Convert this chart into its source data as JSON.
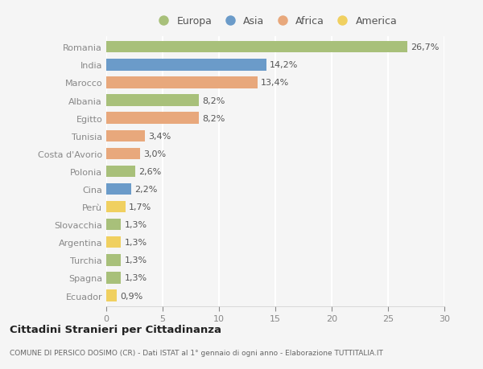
{
  "countries": [
    "Romania",
    "India",
    "Marocco",
    "Albania",
    "Egitto",
    "Tunisia",
    "Costa d'Avorio",
    "Polonia",
    "Cina",
    "Perù",
    "Slovacchia",
    "Argentina",
    "Turchia",
    "Spagna",
    "Ecuador"
  ],
  "values": [
    26.7,
    14.2,
    13.4,
    8.2,
    8.2,
    3.4,
    3.0,
    2.6,
    2.2,
    1.7,
    1.3,
    1.3,
    1.3,
    1.3,
    0.9
  ],
  "labels": [
    "26,7%",
    "14,2%",
    "13,4%",
    "8,2%",
    "8,2%",
    "3,4%",
    "3,0%",
    "2,6%",
    "2,2%",
    "1,7%",
    "1,3%",
    "1,3%",
    "1,3%",
    "1,3%",
    "0,9%"
  ],
  "colors": [
    "#a8c07a",
    "#6b9bc9",
    "#e8a87c",
    "#a8c07a",
    "#e8a87c",
    "#e8a87c",
    "#e8a87c",
    "#a8c07a",
    "#6b9bc9",
    "#f0d060",
    "#a8c07a",
    "#f0d060",
    "#a8c07a",
    "#a8c07a",
    "#f0d060"
  ],
  "continent_labels": [
    "Europa",
    "Asia",
    "Africa",
    "America"
  ],
  "continent_colors": [
    "#a8c07a",
    "#6b9bc9",
    "#e8a87c",
    "#f0d060"
  ],
  "title": "Cittadini Stranieri per Cittadinanza",
  "subtitle": "COMUNE DI PERSICO DOSIMO (CR) - Dati ISTAT al 1° gennaio di ogni anno - Elaborazione TUTTITALIA.IT",
  "xlim": [
    0,
    30
  ],
  "xticks": [
    0,
    5,
    10,
    15,
    20,
    25,
    30
  ],
  "background_color": "#f5f5f5",
  "bar_height": 0.65,
  "grid_color": "#ffffff",
  "label_fontsize": 8,
  "tick_fontsize": 8,
  "ylabel_fontsize": 8
}
